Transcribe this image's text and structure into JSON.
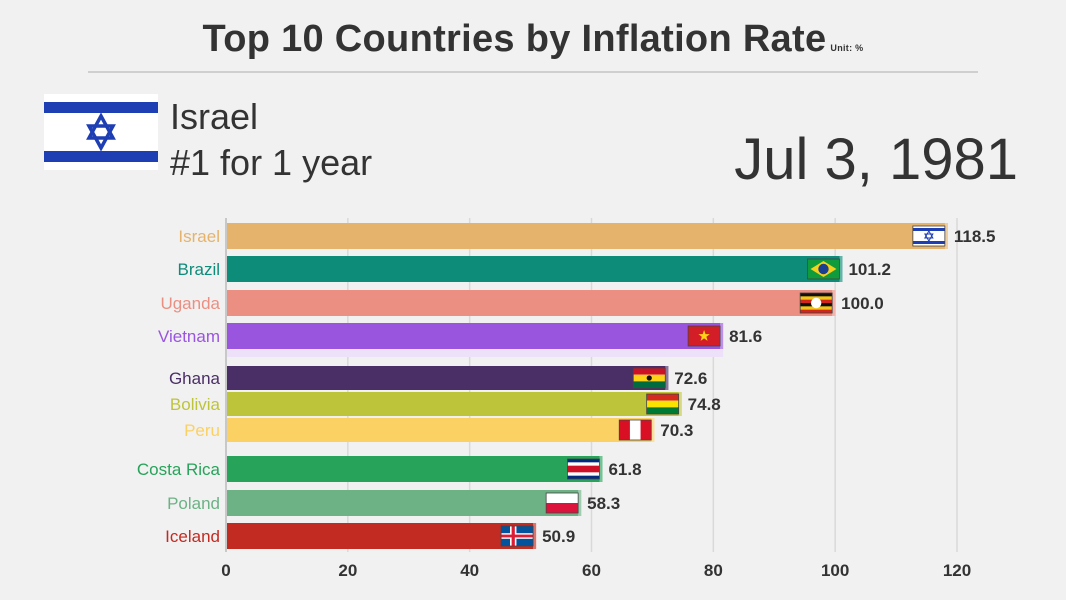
{
  "header": {
    "title": "Top 10 Countries by Inflation Rate",
    "unit": "Unit: %",
    "leader_name": "Israel",
    "leader_rank": "#1 for 1 year",
    "date": "Jul 3, 1981",
    "leader_flag_icon": "israel-flag-icon"
  },
  "chart_data": {
    "type": "bar",
    "orientation": "horizontal",
    "title": "Top 10 Countries by Inflation Rate",
    "unit": "Unit: %",
    "xlim": [
      0,
      120
    ],
    "xticks": [
      0,
      20,
      40,
      60,
      80,
      100,
      120
    ],
    "grid": true,
    "bars": [
      {
        "name": "Israel",
        "value": 118.5,
        "label": "118.5",
        "color": "#e5b36b",
        "flag": "israel-flag-icon"
      },
      {
        "name": "Brazil",
        "value": 101.2,
        "label": "101.2",
        "color": "#0e8c7a",
        "flag": "brazil-flag-icon"
      },
      {
        "name": "Uganda",
        "value": 100.0,
        "label": "100.0",
        "color": "#eb8f82",
        "flag": "uganda-flag-icon"
      },
      {
        "name": "Vietnam",
        "value": 81.6,
        "label": "81.6",
        "color": "#9a55df",
        "flag": "vietnam-flag-icon"
      },
      {
        "name": "Ghana",
        "value": 72.6,
        "label": "72.6",
        "color": "#4a2e66",
        "flag": "ghana-flag-icon"
      },
      {
        "name": "Bolivia",
        "value": 74.8,
        "label": "74.8",
        "color": "#bec43a",
        "flag": "bolivia-flag-icon"
      },
      {
        "name": "Peru",
        "value": 70.3,
        "label": "70.3",
        "color": "#fbd164",
        "flag": "peru-flag-icon"
      },
      {
        "name": "Costa Rica",
        "value": 61.8,
        "label": "61.8",
        "color": "#27a35a",
        "flag": "costa-rica-flag-icon"
      },
      {
        "name": "Poland",
        "value": 58.3,
        "label": "58.3",
        "color": "#6cb285",
        "flag": "poland-flag-icon"
      },
      {
        "name": "Iceland",
        "value": 50.9,
        "label": "50.9",
        "color": "#c12b22",
        "flag": "iceland-flag-icon"
      }
    ]
  }
}
